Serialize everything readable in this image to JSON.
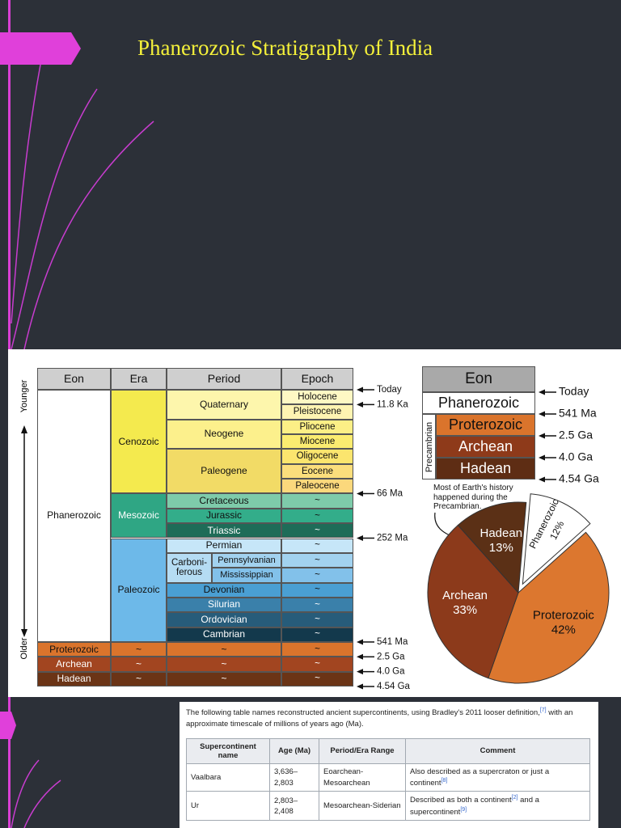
{
  "title": "Phanerozoic Stratigraphy of India",
  "timescale": {
    "headers": [
      "Eon",
      "Era",
      "Period",
      "Epoch"
    ],
    "axis_top": "Younger",
    "axis_bottom": "Older",
    "eons": [
      {
        "name": "Phanerozoic",
        "color": "#ffffff",
        "eras": [
          {
            "name": "Cenozoic",
            "color": "#f4ea4e",
            "periods": [
              {
                "name": "Quaternary",
                "color": "#fdf6ac",
                "epochs": [
                  {
                    "name": "Holocene",
                    "color": "#fef8c4",
                    "boundary": "Today"
                  },
                  {
                    "name": "Pleistocene",
                    "color": "#fef4b2",
                    "boundary": "11.8 Ka"
                  }
                ]
              },
              {
                "name": "Neogene",
                "color": "#fcf08c",
                "epochs": [
                  {
                    "name": "Pliocene",
                    "color": "#fcef86"
                  },
                  {
                    "name": "Miocene",
                    "color": "#fbec70"
                  }
                ]
              },
              {
                "name": "Paleogene",
                "color": "#f2db66",
                "epochs": [
                  {
                    "name": "Oligocene",
                    "color": "#fbe56e"
                  },
                  {
                    "name": "Eocene",
                    "color": "#fbde7c"
                  },
                  {
                    "name": "Paleocene",
                    "color": "#fbd87c"
                  }
                ]
              }
            ]
          },
          {
            "name": "Mesozoic",
            "color": "#2fa684",
            "periods": [
              {
                "name": "Cretaceous",
                "color": "#7ecbaa",
                "epochs": [
                  {
                    "name": "~",
                    "color": "#7ecbaa",
                    "boundary": "66 Ma"
                  }
                ]
              },
              {
                "name": "Jurassic",
                "color": "#33ad8a",
                "epochs": [
                  {
                    "name": "~",
                    "color": "#33ad8a"
                  }
                ]
              },
              {
                "name": "Triassic",
                "color": "#1e6c58",
                "epochs": [
                  {
                    "name": "~",
                    "color": "#1e6c58"
                  }
                ]
              }
            ]
          },
          {
            "name": "Paleozoic",
            "color": "#6db9e9",
            "periods": [
              {
                "name": "Permian",
                "color": "#c6e6f8",
                "epochs": [
                  {
                    "name": "~",
                    "color": "#c6e6f8",
                    "boundary": "252 Ma"
                  }
                ]
              },
              {
                "name": "Carboni-ferous",
                "color": "#b5dcf3",
                "subperiods": [
                  {
                    "name": "Pennsylvanian",
                    "color": "#a2d2ef",
                    "epochs": [
                      {
                        "name": "~",
                        "color": "#a2d2ef"
                      }
                    ]
                  },
                  {
                    "name": "Mississippian",
                    "color": "#82c1ea",
                    "epochs": [
                      {
                        "name": "~",
                        "color": "#82c1ea"
                      }
                    ]
                  }
                ]
              },
              {
                "name": "Devonian",
                "color": "#4a9fd3",
                "epochs": [
                  {
                    "name": "~",
                    "color": "#4a9fd3"
                  }
                ]
              },
              {
                "name": "Silurian",
                "color": "#3a80aa",
                "epochs": [
                  {
                    "name": "~",
                    "color": "#3a80aa"
                  }
                ]
              },
              {
                "name": "Ordovician",
                "color": "#275c7a",
                "epochs": [
                  {
                    "name": "~",
                    "color": "#275c7a"
                  }
                ]
              },
              {
                "name": "Cambrian",
                "color": "#13394c",
                "epochs": [
                  {
                    "name": "~",
                    "color": "#13394c"
                  }
                ]
              }
            ]
          }
        ]
      },
      {
        "name": "Proterozoic",
        "color": "#da742c",
        "eras": [
          {
            "name": "~",
            "color": "#da742c",
            "periods": [
              {
                "name": "~",
                "color": "#da742c",
                "epochs": [
                  {
                    "name": "~",
                    "color": "#da742c",
                    "boundary": "541 Ma"
                  }
                ]
              }
            ]
          }
        ]
      },
      {
        "name": "Archean",
        "color": "#a24520",
        "eras": [
          {
            "name": "~",
            "color": "#a24520",
            "periods": [
              {
                "name": "~",
                "color": "#a24520",
                "epochs": [
                  {
                    "name": "~",
                    "color": "#a24520",
                    "boundary": "2.5 Ga"
                  }
                ]
              }
            ]
          }
        ]
      },
      {
        "name": "Hadean",
        "color": "#6b3416",
        "base": "4.54 Ga",
        "eras": [
          {
            "name": "~",
            "color": "#6b3416",
            "periods": [
              {
                "name": "~",
                "color": "#6b3416",
                "epochs": [
                  {
                    "name": "~",
                    "color": "#6b3416",
                    "boundary": "4.0 Ga"
                  }
                ]
              }
            ]
          }
        ]
      }
    ]
  },
  "eon_table": {
    "header": "Eon",
    "rows": [
      {
        "name": "Phanerozoic",
        "color": "#ffffff",
        "boundary": "Today"
      }
    ],
    "group": {
      "label": "Precambrian",
      "rows": [
        {
          "name": "Proterozoic",
          "color": "#da742c",
          "boundary": "541 Ma"
        },
        {
          "name": "Archean",
          "color": "#8e3a1a",
          "boundary": "2.5 Ga"
        },
        {
          "name": "Hadean",
          "color": "#5e2d14",
          "boundary": "4.0 Ga"
        }
      ]
    },
    "base": "4.54 Ga"
  },
  "pie": {
    "note": "Most of Earth's history happened during the Precambrian.",
    "slices": [
      {
        "label": "Phanerozoic",
        "value": 12,
        "value_label": "12%",
        "color": "#ffffff",
        "exploded": true
      },
      {
        "label": "Proterozoic",
        "value": 42,
        "value_label": "42%",
        "color": "#dc772f"
      },
      {
        "label": "Archean",
        "value": 33,
        "value_label": "33%",
        "color": "#8c3a1b"
      },
      {
        "label": "Hadean",
        "value": 13,
        "value_label": "13%",
        "color": "#5b3016"
      }
    ]
  },
  "supercontinents": {
    "intro": [
      {
        "text": "The following table names reconstructed ancient supercontinents, using Bradley's 2011 looser definition,"
      },
      {
        "sup": "[7]"
      },
      {
        "text": " with an approximate timescale of millions of years ago (Ma)."
      }
    ],
    "headers": [
      "Supercontinent name",
      "Age (Ma)",
      "Period/Era Range",
      "Comment"
    ],
    "rows": [
      {
        "name": "Vaalbara",
        "age": "3,636–2,803",
        "range": "Eoarchean-Mesoarchean",
        "comment": [
          {
            "text": "Also described as a supercraton or just a continent"
          },
          {
            "sup": "[8]"
          }
        ]
      },
      {
        "name": "Ur",
        "age": "2,803–2,408",
        "range": "Mesoarchean-Siderian",
        "comment": [
          {
            "text": "Described as both a continent"
          },
          {
            "sup": "[2]"
          },
          {
            "text": " and a supercontinent"
          },
          {
            "sup": "[9]"
          }
        ]
      }
    ]
  }
}
